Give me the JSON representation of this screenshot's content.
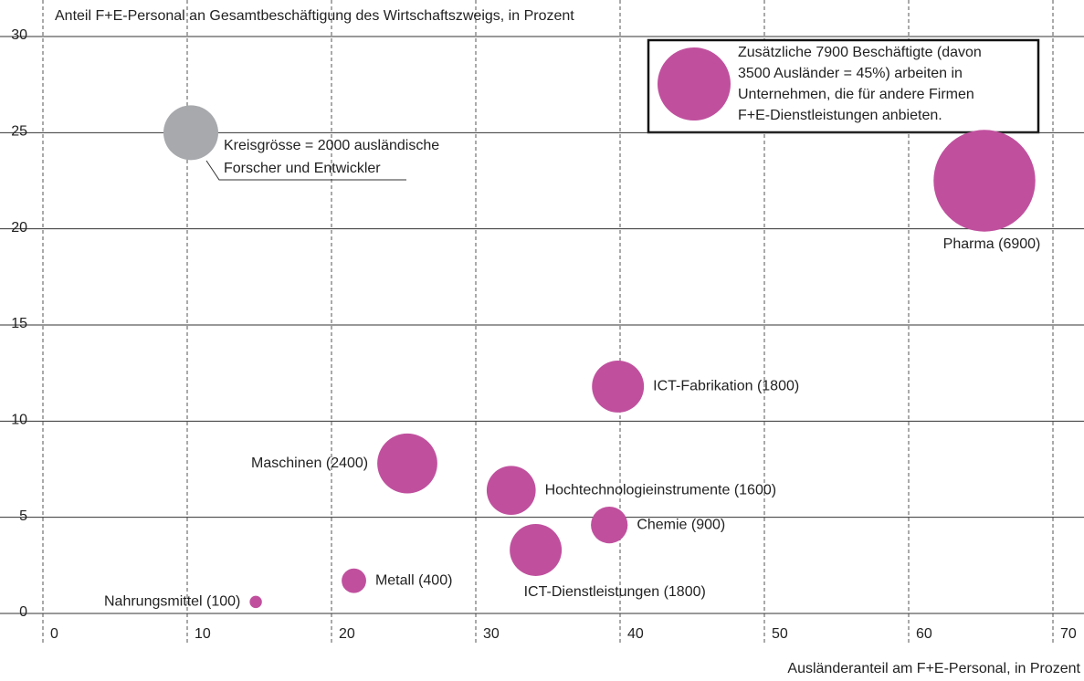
{
  "chart_data": {
    "type": "scatter",
    "title": "Anteil F+E-Personal an Gesamtbeschäftigung des Wirtschaftszweigs, in Prozent",
    "x_label": "Ausländeranteil am F+E-Personal, in Prozent",
    "xlim": [
      0,
      72
    ],
    "ylim": [
      0,
      30
    ],
    "xticks": [
      0,
      10,
      20,
      30,
      40,
      50,
      60,
      70
    ],
    "yticks": [
      0,
      5,
      10,
      15,
      20,
      25,
      30
    ],
    "color": "#c0509e",
    "points": [
      {
        "label": "Pharma (6900)",
        "x": 65,
        "y": 22.5,
        "size": 6900
      },
      {
        "label": "ICT-Fabrikation (1800)",
        "x": 39.6,
        "y": 11.8,
        "size": 1800
      },
      {
        "label": "Maschinen (2400)",
        "x": 25,
        "y": 7.8,
        "size": 2400
      },
      {
        "label": "Hochtechnologieinstrumente (1600)",
        "x": 32.2,
        "y": 6.4,
        "size": 1600
      },
      {
        "label": "Chemie (900)",
        "x": 39,
        "y": 4.6,
        "size": 900
      },
      {
        "label": "ICT-Dienstleistungen (1800)",
        "x": 33.9,
        "y": 3.3,
        "size": 1800
      },
      {
        "label": "Metall (400)",
        "x": 21.3,
        "y": 1.7,
        "size": 400
      },
      {
        "label": "Nahrungsmittel (100)",
        "x": 14.5,
        "y": 0.6,
        "size": 100
      }
    ],
    "size_legend": {
      "x": 10,
      "y": 25,
      "size": 2000,
      "color": "#a7a9ac",
      "lines": [
        "Kreisgrösse = 2000 ausländische",
        "Forscher und Entwickler"
      ]
    },
    "note": {
      "lines": [
        "Zusätzliche 7900 Beschäftigte (davon",
        "3500 Ausländer = 45%) arbeiten in",
        "Unternehmen, die für andere Firmen",
        "F+E-Dienstleistungen anbieten."
      ]
    }
  }
}
